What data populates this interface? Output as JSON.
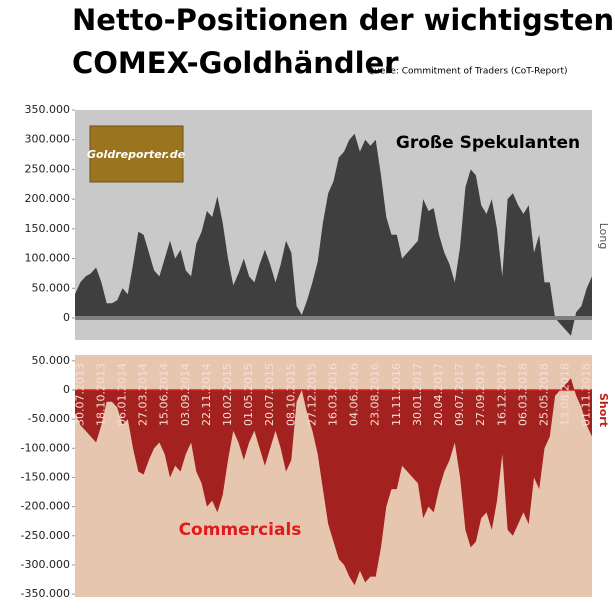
{
  "title": [
    "Netto-Positionen der wichtigsten",
    "COMEX-Goldhändler"
  ],
  "source": "Quelle: Commitment of Traders (CoT-Report)",
  "chart_data": [
    {
      "type": "area",
      "name": "Große Spekulanten",
      "side_label": "Long",
      "logo": "Goldreporter.de",
      "color": "#3f3f3f",
      "background": "#c9c9c9",
      "zero_line_color": "#7f7f7f",
      "ylim": [
        -37000,
        350000
      ],
      "yticks": [
        {
          "value": 0,
          "label": "0"
        },
        {
          "value": 50000,
          "label": "50.000"
        },
        {
          "value": 100000,
          "label": "100.000"
        },
        {
          "value": 150000,
          "label": "150.000"
        },
        {
          "value": 200000,
          "label": "200.000"
        },
        {
          "value": 250000,
          "label": "250.000"
        },
        {
          "value": 300000,
          "label": "300.000"
        },
        {
          "value": 350000,
          "label": "350.000"
        }
      ],
      "values": [
        40000,
        60000,
        70000,
        75000,
        85000,
        60000,
        25000,
        25000,
        30000,
        50000,
        40000,
        90000,
        145000,
        140000,
        110000,
        80000,
        70000,
        100000,
        130000,
        100000,
        115000,
        80000,
        70000,
        125000,
        145000,
        180000,
        170000,
        205000,
        160000,
        100000,
        55000,
        75000,
        100000,
        70000,
        60000,
        90000,
        115000,
        90000,
        60000,
        90000,
        130000,
        110000,
        20000,
        5000,
        30000,
        60000,
        95000,
        160000,
        210000,
        230000,
        270000,
        280000,
        300000,
        310000,
        280000,
        300000,
        290000,
        300000,
        240000,
        170000,
        140000,
        140000,
        100000,
        110000,
        120000,
        130000,
        200000,
        180000,
        185000,
        140000,
        110000,
        90000,
        60000,
        120000,
        220000,
        250000,
        240000,
        190000,
        175000,
        200000,
        150000,
        70000,
        200000,
        210000,
        190000,
        175000,
        190000,
        110000,
        140000,
        60000,
        60000,
        0,
        -10000,
        -20000,
        -30000,
        10000,
        20000,
        50000,
        70000
      ]
    },
    {
      "type": "area",
      "name": "Commercials",
      "side_label": "Short",
      "color": "#a3221f",
      "background": "#e7c6b0",
      "zero_line_color": "#d42020",
      "ylim": [
        -355000,
        60000
      ],
      "yticks": [
        {
          "value": -350000,
          "label": "-350.000"
        },
        {
          "value": -300000,
          "label": "-300.000"
        },
        {
          "value": -250000,
          "label": "-250.000"
        },
        {
          "value": -200000,
          "label": "-200.000"
        },
        {
          "value": -150000,
          "label": "-150.000"
        },
        {
          "value": -100000,
          "label": "-100.000"
        },
        {
          "value": -50000,
          "label": "-50.000"
        },
        {
          "value": 0,
          "label": "0"
        },
        {
          "value": 50000,
          "label": "50.000"
        }
      ],
      "categories": [
        null,
        "30.07.2013",
        null,
        null,
        null,
        "18.10.2013",
        null,
        null,
        null,
        "06.01.2014",
        null,
        null,
        null,
        "27.03.2014",
        null,
        null,
        null,
        "15.06.2014",
        null,
        null,
        null,
        "03.09.2014",
        null,
        null,
        null,
        "22.11.2014",
        null,
        null,
        null,
        "10.02.2015",
        null,
        null,
        null,
        "01.05.2015",
        null,
        null,
        null,
        "20.07.2015",
        null,
        null,
        null,
        "08.10.2015",
        null,
        null,
        null,
        "27.12.2015",
        null,
        null,
        null,
        "16.03.2016",
        null,
        null,
        null,
        "04.06.2016",
        null,
        null,
        null,
        "23.08.2016",
        null,
        null,
        null,
        "11.11.2016",
        null,
        null,
        null,
        "30.01.2017",
        null,
        null,
        null,
        "20.04.2017",
        null,
        null,
        null,
        "09.07.2017",
        null,
        null,
        null,
        "27.09.2017",
        null,
        null,
        null,
        "16.12.2017",
        null,
        null,
        null,
        "06.03.2018",
        null,
        null,
        null,
        "25.05.2018",
        null,
        null,
        null,
        "13.08.2018",
        null,
        null,
        null,
        "01.11.2018",
        null
      ],
      "values": [
        -40000,
        -60000,
        -70000,
        -80000,
        -90000,
        -60000,
        -20000,
        -20000,
        -30000,
        -60000,
        -50000,
        -100000,
        -140000,
        -145000,
        -120000,
        -100000,
        -90000,
        -110000,
        -150000,
        -130000,
        -140000,
        -110000,
        -90000,
        -140000,
        -160000,
        -200000,
        -190000,
        -210000,
        -180000,
        -120000,
        -70000,
        -90000,
        -120000,
        -90000,
        -70000,
        -100000,
        -130000,
        -100000,
        -70000,
        -100000,
        -140000,
        -120000,
        -20000,
        0,
        -40000,
        -70000,
        -110000,
        -170000,
        -230000,
        -260000,
        -290000,
        -300000,
        -320000,
        -335000,
        -310000,
        -330000,
        -320000,
        -320000,
        -270000,
        -200000,
        -170000,
        -170000,
        -130000,
        -140000,
        -150000,
        -160000,
        -220000,
        -200000,
        -210000,
        -170000,
        -140000,
        -120000,
        -90000,
        -150000,
        -240000,
        -270000,
        -260000,
        -220000,
        -210000,
        -240000,
        -190000,
        -110000,
        -240000,
        -250000,
        -230000,
        -210000,
        -230000,
        -150000,
        -170000,
        -100000,
        -80000,
        -10000,
        0,
        10000,
        20000,
        -10000,
        -30000,
        -60000,
        -80000
      ]
    }
  ]
}
